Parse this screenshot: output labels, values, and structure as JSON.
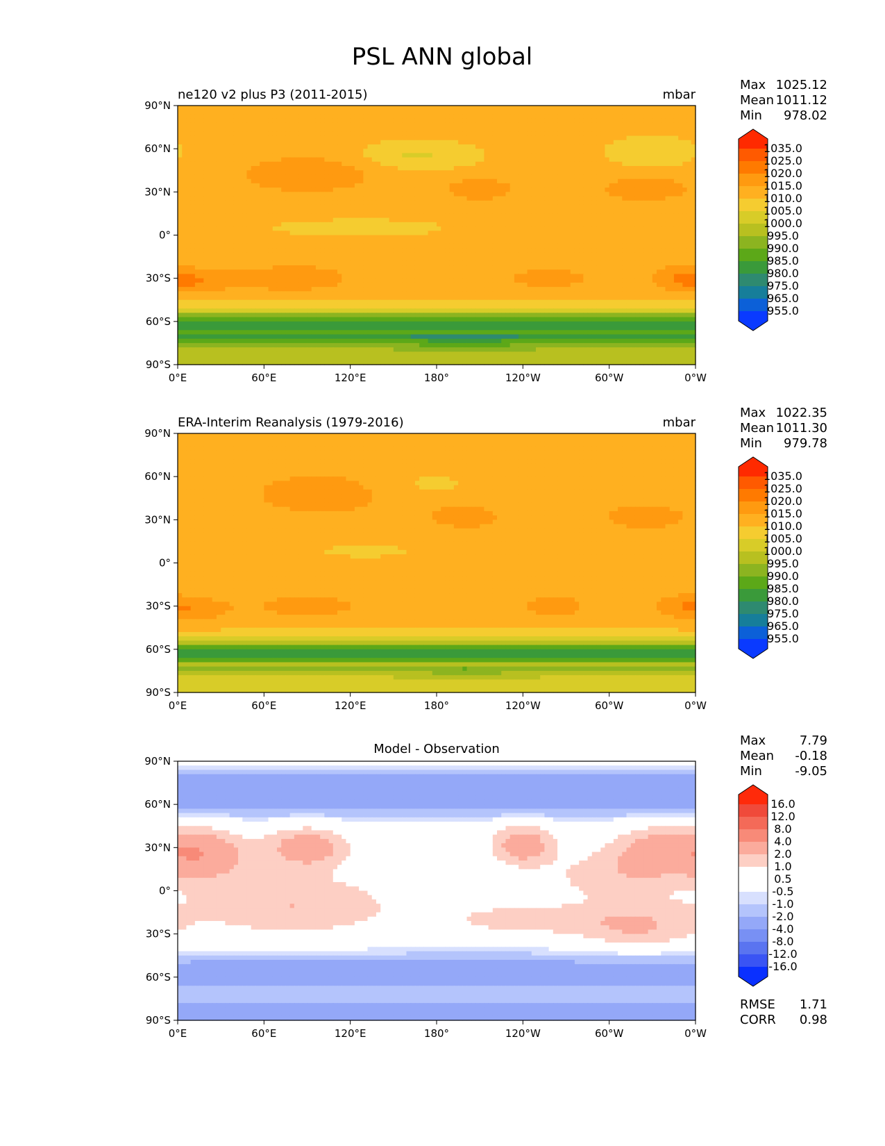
{
  "figure_title": "PSL ANN global",
  "chart_data": [
    {
      "type": "heatmap",
      "panel": "model",
      "title_left": "ne120 v2 plus P3 (2011-2015)",
      "title_right": "mbar",
      "stats": [
        {
          "label": "Max",
          "value": "1025.12"
        },
        {
          "label": "Mean",
          "value": "1011.12"
        },
        {
          "label": "Min",
          "value": "978.02"
        }
      ],
      "xticks": [
        "0°E",
        "60°E",
        "120°E",
        "180°",
        "120°W",
        "60°W",
        "0°W"
      ],
      "yticks": [
        "90°N",
        "60°N",
        "30°N",
        "0°",
        "30°S",
        "60°S",
        "90°S"
      ],
      "xlim": [
        0,
        360
      ],
      "ylim": [
        -90,
        90
      ],
      "colorbar": {
        "levels": [
          "1035.0",
          "1025.0",
          "1020.0",
          "1015.0",
          "1010.0",
          "1005.0",
          "1000.0",
          "995.0",
          "990.0",
          "985.0",
          "980.0",
          "975.0",
          "965.0",
          "955.0"
        ],
        "colors": [
          "#ff2a00",
          "#ff5a00",
          "#ff7a00",
          "#ff9a10",
          "#ffb020",
          "#f5cc30",
          "#d8cc28",
          "#b8c020",
          "#8cb420",
          "#5ca818",
          "#3a9a3a",
          "#2e8a70",
          "#167e9a",
          "#0c60d8",
          "#0a3aff"
        ]
      },
      "field": "model_psl"
    },
    {
      "type": "heatmap",
      "panel": "reference",
      "title_left": "ERA-Interim Reanalysis (1979-2016)",
      "title_right": "mbar",
      "stats": [
        {
          "label": "Max",
          "value": "1022.35"
        },
        {
          "label": "Mean",
          "value": "1011.30"
        },
        {
          "label": "Min",
          "value": "979.78"
        }
      ],
      "xticks": [
        "0°E",
        "60°E",
        "120°E",
        "180°",
        "120°W",
        "60°W",
        "0°W"
      ],
      "yticks": [
        "90°N",
        "60°N",
        "30°N",
        "0°",
        "30°S",
        "60°S",
        "90°S"
      ],
      "xlim": [
        0,
        360
      ],
      "ylim": [
        -90,
        90
      ],
      "colorbar": {
        "levels": [
          "1035.0",
          "1025.0",
          "1020.0",
          "1015.0",
          "1010.0",
          "1005.0",
          "1000.0",
          "995.0",
          "990.0",
          "985.0",
          "980.0",
          "975.0",
          "965.0",
          "955.0"
        ],
        "colors": [
          "#ff2a00",
          "#ff5a00",
          "#ff7a00",
          "#ff9a10",
          "#ffb020",
          "#f5cc30",
          "#d8cc28",
          "#b8c020",
          "#8cb420",
          "#5ca818",
          "#3a9a3a",
          "#2e8a70",
          "#167e9a",
          "#0c60d8",
          "#0a3aff"
        ]
      },
      "field": "obs_psl"
    },
    {
      "type": "heatmap",
      "panel": "difference",
      "title_center": "Model - Observation",
      "stats": [
        {
          "label": "Max",
          "value": "7.79"
        },
        {
          "label": "Mean",
          "value": "-0.18"
        },
        {
          "label": "Min",
          "value": "-9.05"
        }
      ],
      "extra_stats": [
        {
          "label": "RMSE",
          "value": "1.71"
        },
        {
          "label": "CORR",
          "value": "0.98"
        }
      ],
      "xticks": [
        "0°E",
        "60°E",
        "120°E",
        "180°",
        "120°W",
        "60°W",
        "0°W"
      ],
      "yticks": [
        "90°N",
        "60°N",
        "30°N",
        "0°",
        "30°S",
        "60°S",
        "90°S"
      ],
      "xlim": [
        0,
        360
      ],
      "ylim": [
        -90,
        90
      ],
      "colorbar": {
        "levels": [
          "16.0",
          "12.0",
          "8.0",
          "4.0",
          "2.0",
          "1.0",
          "0.5",
          "-0.5",
          "-1.0",
          "-2.0",
          "-4.0",
          "-8.0",
          "-12.0",
          "-16.0"
        ],
        "colors": [
          "#ff2a0a",
          "#f04a3a",
          "#f46a58",
          "#f88a78",
          "#fbab9c",
          "#fdcfc4",
          "#ffffff",
          "#ffffff",
          "#d8e0fe",
          "#b4c4fc",
          "#94a8f8",
          "#7890f4",
          "#5a74f0",
          "#3a54f4",
          "#0a30ff"
        ]
      },
      "field": "diff_psl"
    }
  ]
}
